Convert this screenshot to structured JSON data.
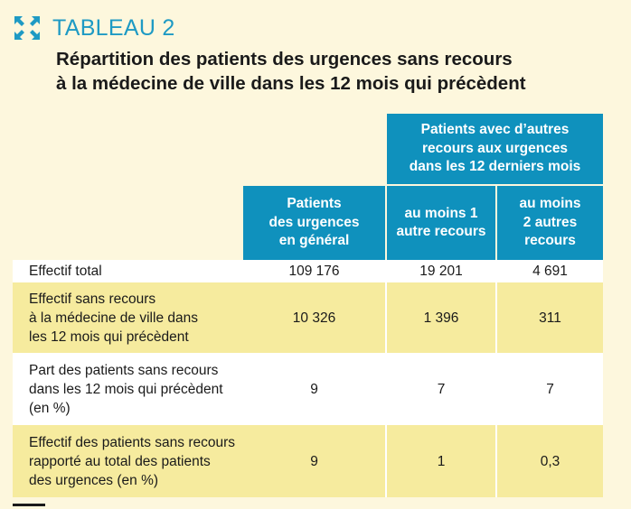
{
  "header": {
    "tableau_label": "TABLEAU 2",
    "title_line1": "Répartition des patients des urgences sans recours",
    "title_line2": "à la médecine de ville dans les 12 mois qui précèdent"
  },
  "icons": {
    "expand": "expand-arrows-icon"
  },
  "colors": {
    "accent": "#1e9ac4",
    "header_fill": "#0f91bd",
    "row_yellow": "#f6eb9e",
    "background": "#fdf7dd"
  },
  "table": {
    "group_header": {
      "line1": "Patients avec d’autres",
      "line2": "recours aux urgences",
      "line3": "dans les 12 derniers mois"
    },
    "column_headers": [
      {
        "line1": "Patients",
        "line2": "des urgences",
        "line3": "en général"
      },
      {
        "line1": "au moins 1",
        "line2": "autre recours"
      },
      {
        "line1": "au moins",
        "line2": "2 autres",
        "line3": "recours"
      }
    ],
    "rows": [
      {
        "label": [
          "Effectif total"
        ],
        "values": [
          "109 176",
          "19 201",
          "4 691"
        ]
      },
      {
        "label": [
          "Effectif sans recours",
          "à la médecine de ville dans",
          "les 12 mois qui précèdent"
        ],
        "values": [
          "10 326",
          "1 396",
          "311"
        ]
      },
      {
        "label": [
          "Part des patients sans recours",
          "dans les 12 mois qui précèdent",
          "(en %)"
        ],
        "values": [
          "9",
          "7",
          "7"
        ]
      },
      {
        "label": [
          "Effectif des patients sans recours",
          "rapporté au total des patients",
          "des urgences (en %)"
        ],
        "values": [
          "9",
          "1",
          "0,3"
        ]
      }
    ]
  }
}
